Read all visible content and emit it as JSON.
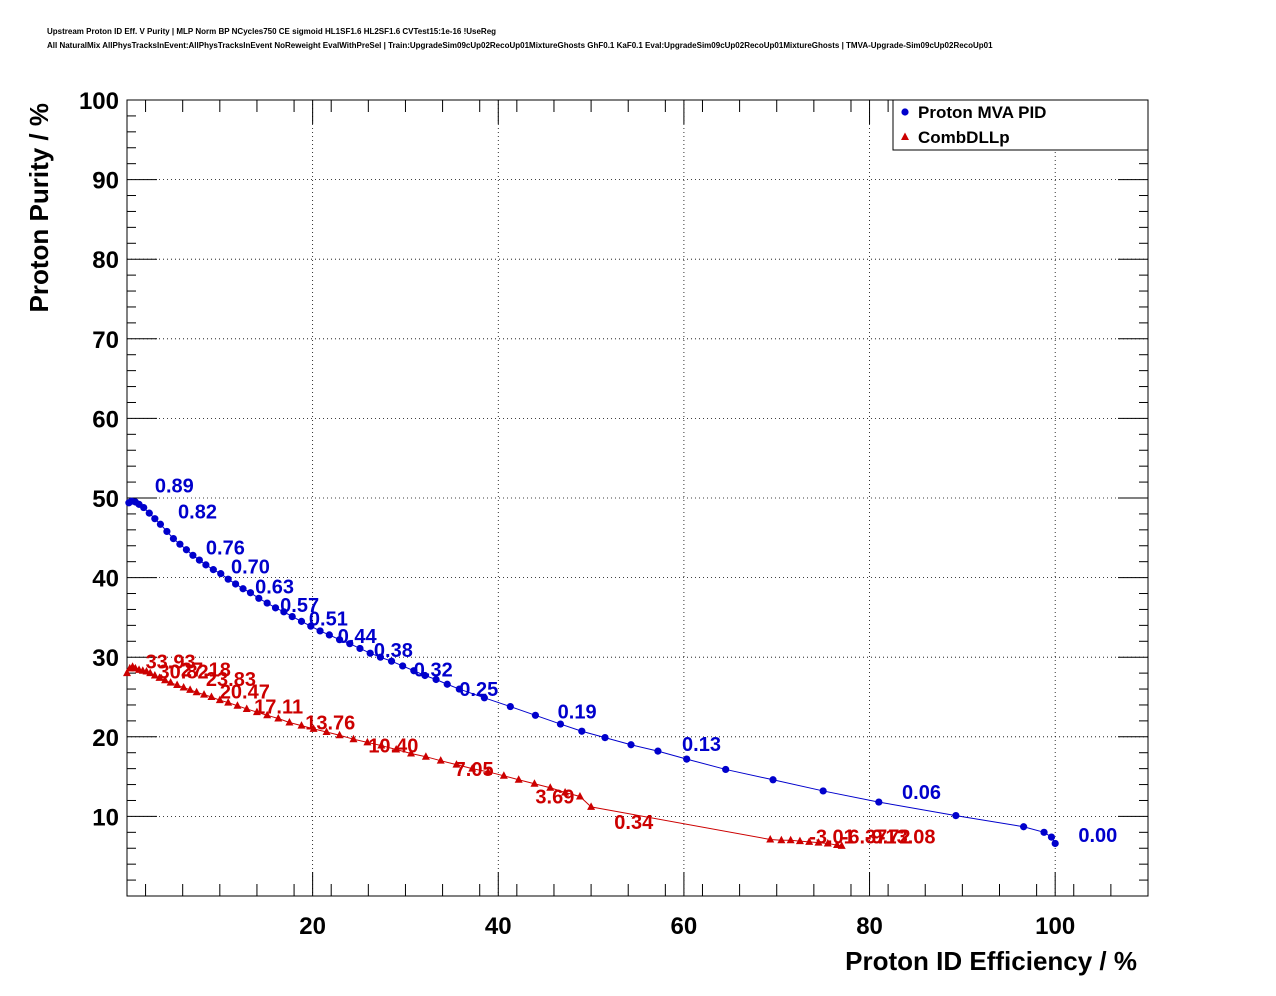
{
  "header": {
    "line1": "Upstream Proton ID Eff. V Purity | MLP Norm BP NCycles750 CE sigmoid HL1SF1.6 HL2SF1.6 CVTest15:1e-16 !UseReg",
    "line2": "All NaturalMix AllPhysTracksInEvent:AllPhysTracksInEvent NoReweight EvalWithPreSel | Train:UpgradeSim09cUp02RecoUp01MixtureGhosts GhF0.1 KaF0.1 Eval:UpgradeSim09cUp02RecoUp01MixtureGhosts | TMVA-Upgrade-Sim09cUp02RecoUp01"
  },
  "chart_data": {
    "type": "scatter",
    "title": "",
    "xlabel": "Proton ID Efficiency / %",
    "ylabel": "Proton Purity / %",
    "xlim": [
      0,
      110
    ],
    "ylim": [
      0,
      100
    ],
    "xticks": [
      20,
      40,
      60,
      80,
      100
    ],
    "yticks": [
      10,
      20,
      30,
      40,
      50,
      60,
      70,
      80,
      90,
      100
    ],
    "grid": true,
    "legend_position": "top-right",
    "series": [
      {
        "name": "Proton MVA PID",
        "color": "#0000cc",
        "marker": "circle",
        "points": [
          [
            0.2,
            49.4
          ],
          [
            0.5,
            49.6
          ],
          [
            0.9,
            49.5
          ],
          [
            1.3,
            49.2
          ],
          [
            1.8,
            48.8
          ],
          [
            2.4,
            48.1
          ],
          [
            3.0,
            47.4
          ],
          [
            3.6,
            46.7
          ],
          [
            4.3,
            45.8
          ],
          [
            5.0,
            44.9
          ],
          [
            5.7,
            44.2
          ],
          [
            6.4,
            43.5
          ],
          [
            7.1,
            42.8
          ],
          [
            7.8,
            42.2
          ],
          [
            8.5,
            41.6
          ],
          [
            9.3,
            41.0
          ],
          [
            10.1,
            40.5
          ],
          [
            10.9,
            39.8
          ],
          [
            11.7,
            39.2
          ],
          [
            12.5,
            38.6
          ],
          [
            13.3,
            38.1
          ],
          [
            14.2,
            37.4
          ],
          [
            15.1,
            36.8
          ],
          [
            16.0,
            36.2
          ],
          [
            16.9,
            35.7
          ],
          [
            17.8,
            35.1
          ],
          [
            18.8,
            34.5
          ],
          [
            19.8,
            33.9
          ],
          [
            20.8,
            33.3
          ],
          [
            21.8,
            32.8
          ],
          [
            22.9,
            32.2
          ],
          [
            24.0,
            31.7
          ],
          [
            25.1,
            31.1
          ],
          [
            26.2,
            30.5
          ],
          [
            27.3,
            30.0
          ],
          [
            28.5,
            29.5
          ],
          [
            29.7,
            28.9
          ],
          [
            30.9,
            28.3
          ],
          [
            32.1,
            27.7
          ],
          [
            33.3,
            27.2
          ],
          [
            34.5,
            26.6
          ],
          [
            35.8,
            26.0
          ],
          [
            38.5,
            24.9
          ],
          [
            41.3,
            23.8
          ],
          [
            44.0,
            22.7
          ],
          [
            46.7,
            21.6
          ],
          [
            49.0,
            20.7
          ],
          [
            51.5,
            19.9
          ],
          [
            54.3,
            19.0
          ],
          [
            57.2,
            18.2
          ],
          [
            60.3,
            17.2
          ],
          [
            64.5,
            15.9
          ],
          [
            69.6,
            14.6
          ],
          [
            75.0,
            13.2
          ],
          [
            81.0,
            11.8
          ],
          [
            89.3,
            10.1
          ],
          [
            96.6,
            8.7
          ],
          [
            98.8,
            8.0
          ],
          [
            99.6,
            7.4
          ],
          [
            100.0,
            6.6
          ]
        ],
        "labels": [
          {
            "text": "0.89",
            "x": 3.0,
            "y": 50.7
          },
          {
            "text": "0.82",
            "x": 5.5,
            "y": 47.4
          },
          {
            "text": "0.76",
            "x": 8.5,
            "y": 42.9
          },
          {
            "text": "0.70",
            "x": 11.2,
            "y": 40.5
          },
          {
            "text": "0.63",
            "x": 13.8,
            "y": 38.0
          },
          {
            "text": "0.57",
            "x": 16.5,
            "y": 35.7
          },
          {
            "text": "0.51",
            "x": 19.6,
            "y": 34.0
          },
          {
            "text": "0.44",
            "x": 22.7,
            "y": 31.8
          },
          {
            "text": "0.38",
            "x": 26.6,
            "y": 30.0
          },
          {
            "text": "0.32",
            "x": 30.9,
            "y": 27.6
          },
          {
            "text": "0.25",
            "x": 35.8,
            "y": 25.1
          },
          {
            "text": "0.19",
            "x": 46.4,
            "y": 22.3
          },
          {
            "text": "0.13",
            "x": 59.8,
            "y": 18.2
          },
          {
            "text": "0.06",
            "x": 83.5,
            "y": 12.2
          },
          {
            "text": "0.00",
            "x": 102.5,
            "y": 6.8
          }
        ]
      },
      {
        "name": "CombDLLp",
        "color": "#cc0000",
        "marker": "triangle",
        "points": [
          [
            0.0,
            28.0
          ],
          [
            0.3,
            28.6
          ],
          [
            0.6,
            28.8
          ],
          [
            0.9,
            28.6
          ],
          [
            1.3,
            28.4
          ],
          [
            1.7,
            28.3
          ],
          [
            2.1,
            28.2
          ],
          [
            2.5,
            28.0
          ],
          [
            3.0,
            27.7
          ],
          [
            3.5,
            27.4
          ],
          [
            4.1,
            27.1
          ],
          [
            4.7,
            26.8
          ],
          [
            5.4,
            26.5
          ],
          [
            6.1,
            26.2
          ],
          [
            6.8,
            25.9
          ],
          [
            7.5,
            25.6
          ],
          [
            8.3,
            25.3
          ],
          [
            9.1,
            25.0
          ],
          [
            10.0,
            24.6
          ],
          [
            10.9,
            24.3
          ],
          [
            11.9,
            23.9
          ],
          [
            12.9,
            23.5
          ],
          [
            14.0,
            23.1
          ],
          [
            15.1,
            22.7
          ],
          [
            16.3,
            22.3
          ],
          [
            17.5,
            21.8
          ],
          [
            18.8,
            21.4
          ],
          [
            20.1,
            21.0
          ],
          [
            21.5,
            20.6
          ],
          [
            22.9,
            20.2
          ],
          [
            24.4,
            19.7
          ],
          [
            25.9,
            19.3
          ],
          [
            27.4,
            18.9
          ],
          [
            29.0,
            18.4
          ],
          [
            30.6,
            17.9
          ],
          [
            32.2,
            17.5
          ],
          [
            33.8,
            17.0
          ],
          [
            35.5,
            16.5
          ],
          [
            37.2,
            16.0
          ],
          [
            38.9,
            15.6
          ],
          [
            40.6,
            15.1
          ],
          [
            42.2,
            14.6
          ],
          [
            43.9,
            14.1
          ],
          [
            45.6,
            13.6
          ],
          [
            47.2,
            13.0
          ],
          [
            48.8,
            12.5
          ],
          [
            50.0,
            11.2
          ],
          [
            69.3,
            7.1
          ],
          [
            70.5,
            7.0
          ],
          [
            71.5,
            7.0
          ],
          [
            72.5,
            6.9
          ],
          [
            73.5,
            6.8
          ],
          [
            74.5,
            6.7
          ],
          [
            75.5,
            6.6
          ],
          [
            76.5,
            6.4
          ],
          [
            77.0,
            6.3
          ]
        ],
        "labels": [
          {
            "text": "33.93",
            "x": 2.0,
            "y": 28.6
          },
          {
            "text": "30.82",
            "x": 3.4,
            "y": 27.3
          },
          {
            "text": "27.18",
            "x": 5.8,
            "y": 27.6
          },
          {
            "text": "23.83",
            "x": 8.5,
            "y": 26.4
          },
          {
            "text": "20.47",
            "x": 10.0,
            "y": 24.8
          },
          {
            "text": "17.11",
            "x": 13.7,
            "y": 22.9
          },
          {
            "text": "13.76",
            "x": 19.2,
            "y": 20.9
          },
          {
            "text": "10.40",
            "x": 26.0,
            "y": 18.0
          },
          {
            "text": "7.05",
            "x": 35.3,
            "y": 15.1
          },
          {
            "text": "3.69",
            "x": 44.0,
            "y": 11.6
          },
          {
            "text": "0.34",
            "x": 52.5,
            "y": 8.4
          },
          {
            "text": "-3.01",
            "x": 73.5,
            "y": 6.6
          },
          {
            "text": "-6.37",
            "x": 77.0,
            "y": 6.6
          },
          {
            "text": "-9.72",
            "x": 79.5,
            "y": 6.6
          },
          {
            "text": "-13.08",
            "x": 81.0,
            "y": 6.6
          }
        ]
      }
    ]
  }
}
